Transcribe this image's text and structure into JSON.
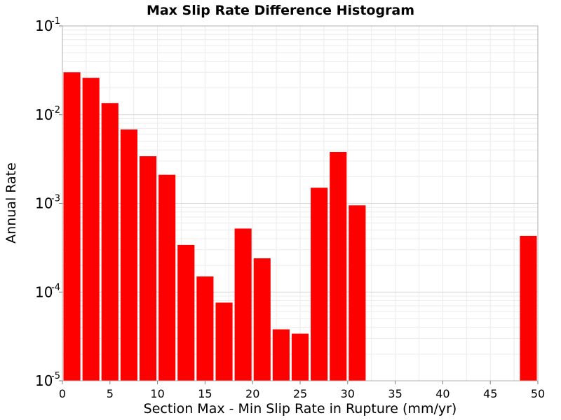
{
  "chart_data": {
    "type": "bar",
    "title": "Max Slip Rate Difference Histogram",
    "xlabel": "Section Max - Min Slip Rate in Rupture (mm/yr)",
    "ylabel": "Annual Rate",
    "xlim": [
      0,
      50
    ],
    "ylim": [
      1e-05,
      0.1
    ],
    "yscale": "log",
    "bar_width": 2,
    "bar_color": "#ff0000",
    "grid": true,
    "legend": "none",
    "x_ticks": [
      "0",
      "5",
      "10",
      "15",
      "20",
      "25",
      "30",
      "35",
      "40",
      "45",
      "50"
    ],
    "y_ticks": [
      {
        "base": "10",
        "exp": "-1"
      },
      {
        "base": "10",
        "exp": "-2"
      },
      {
        "base": "10",
        "exp": "-3"
      },
      {
        "base": "10",
        "exp": "-4"
      },
      {
        "base": "10",
        "exp": "-5"
      }
    ],
    "bins": [
      {
        "x": 1,
        "value": 0.03
      },
      {
        "x": 3,
        "value": 0.026
      },
      {
        "x": 5,
        "value": 0.0135
      },
      {
        "x": 7,
        "value": 0.0068
      },
      {
        "x": 9,
        "value": 0.0034
      },
      {
        "x": 11,
        "value": 0.0021
      },
      {
        "x": 13,
        "value": 0.00034
      },
      {
        "x": 15,
        "value": 0.00015
      },
      {
        "x": 17,
        "value": 7.6e-05
      },
      {
        "x": 19,
        "value": 0.00052
      },
      {
        "x": 21,
        "value": 0.00024
      },
      {
        "x": 23,
        "value": 3.8e-05
      },
      {
        "x": 25,
        "value": 3.4e-05
      },
      {
        "x": 27,
        "value": 0.0015
      },
      {
        "x": 29,
        "value": 0.0038
      },
      {
        "x": 31,
        "value": 0.00095
      },
      {
        "x": 49,
        "value": 0.00043
      }
    ]
  }
}
